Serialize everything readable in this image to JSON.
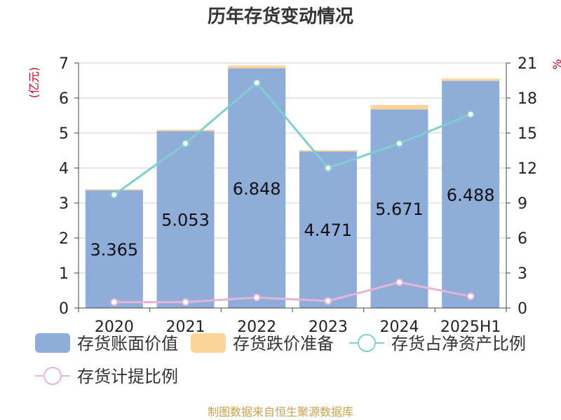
{
  "chart_data": {
    "type": "bar",
    "title": "历年存货变动情况",
    "categories": [
      "2020",
      "2021",
      "2022",
      "2023",
      "2024",
      "2025H1"
    ],
    "y_left": {
      "unit": "(亿元)",
      "ylim": [
        0,
        7
      ],
      "ticks": [
        0,
        1,
        2,
        3,
        4,
        5,
        6,
        7
      ]
    },
    "y_right": {
      "unit": "%",
      "ylim": [
        0,
        21
      ],
      "ticks": [
        0,
        3,
        6,
        9,
        12,
        15,
        18,
        21
      ]
    },
    "grid": true,
    "legend_position": "bottom",
    "series": [
      {
        "name": "存货账面价值",
        "kind": "bar",
        "axis": "left",
        "color": "#8eadd9",
        "values": [
          3.365,
          5.053,
          6.848,
          4.471,
          5.671,
          6.488
        ],
        "labels": [
          "3.365",
          "5.053",
          "6.848",
          "4.471",
          "5.671",
          "6.488"
        ]
      },
      {
        "name": "存货跌价准备",
        "kind": "bar-stack",
        "axis": "left",
        "color": "#fdd59a",
        "values": [
          0.03,
          0.04,
          0.08,
          0.04,
          0.13,
          0.07
        ]
      },
      {
        "name": "存货占净资产比例",
        "kind": "line",
        "axis": "right",
        "color": "#7ecfcf",
        "values": [
          9.7,
          14.1,
          19.3,
          12.0,
          14.1,
          16.6
        ]
      },
      {
        "name": "存货计提比例",
        "kind": "line",
        "axis": "right",
        "color": "#e6b3d9",
        "values": [
          0.5,
          0.5,
          0.9,
          0.6,
          2.2,
          1.0
        ]
      }
    ]
  },
  "source": "制图数据来自恒生聚源数据库"
}
